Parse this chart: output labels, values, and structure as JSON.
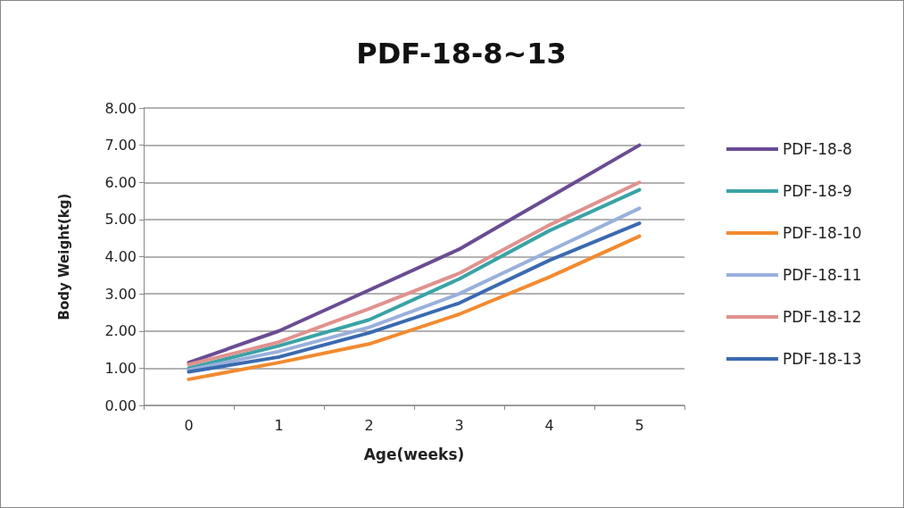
{
  "chart_data": {
    "type": "line",
    "title": "PDF-18-8~13",
    "xlabel": "Age(weeks)",
    "ylabel": "Body Weight(kg)",
    "categories": [
      "0",
      "1",
      "2",
      "3",
      "4",
      "5"
    ],
    "series": [
      {
        "name": "PDF-18-8",
        "color": "#6a4c93",
        "values": [
          1.15,
          2.0,
          3.1,
          4.2,
          5.6,
          7.0
        ]
      },
      {
        "name": "PDF-18-9",
        "color": "#3aa3a6",
        "values": [
          1.0,
          1.6,
          2.3,
          3.4,
          4.7,
          5.8
        ]
      },
      {
        "name": "PDF-18-10",
        "color": "#f28a30",
        "values": [
          0.7,
          1.15,
          1.65,
          2.45,
          3.45,
          4.55
        ]
      },
      {
        "name": "PDF-18-11",
        "color": "#99b0dc",
        "values": [
          0.95,
          1.45,
          2.1,
          3.0,
          4.15,
          5.3
        ]
      },
      {
        "name": "PDF-18-12",
        "color": "#e0928e",
        "values": [
          1.1,
          1.7,
          2.6,
          3.55,
          4.85,
          6.0
        ]
      },
      {
        "name": "PDF-18-13",
        "color": "#3a6ab0",
        "values": [
          0.9,
          1.3,
          1.95,
          2.75,
          3.9,
          4.9
        ]
      }
    ],
    "ylim": [
      0,
      8
    ],
    "yticks": [
      {
        "value": 0,
        "label": "0.00"
      },
      {
        "value": 1,
        "label": "1.00"
      },
      {
        "value": 2,
        "label": "2.00"
      },
      {
        "value": 3,
        "label": "3.00"
      },
      {
        "value": 4,
        "label": "4.00"
      },
      {
        "value": 5,
        "label": "5.00"
      },
      {
        "value": 6,
        "label": "6.00"
      },
      {
        "value": 7,
        "label": "7.00"
      },
      {
        "value": 8,
        "label": "8.00"
      }
    ],
    "grid": "y",
    "legend": "right",
    "marker": "none",
    "line_style": "solid"
  }
}
